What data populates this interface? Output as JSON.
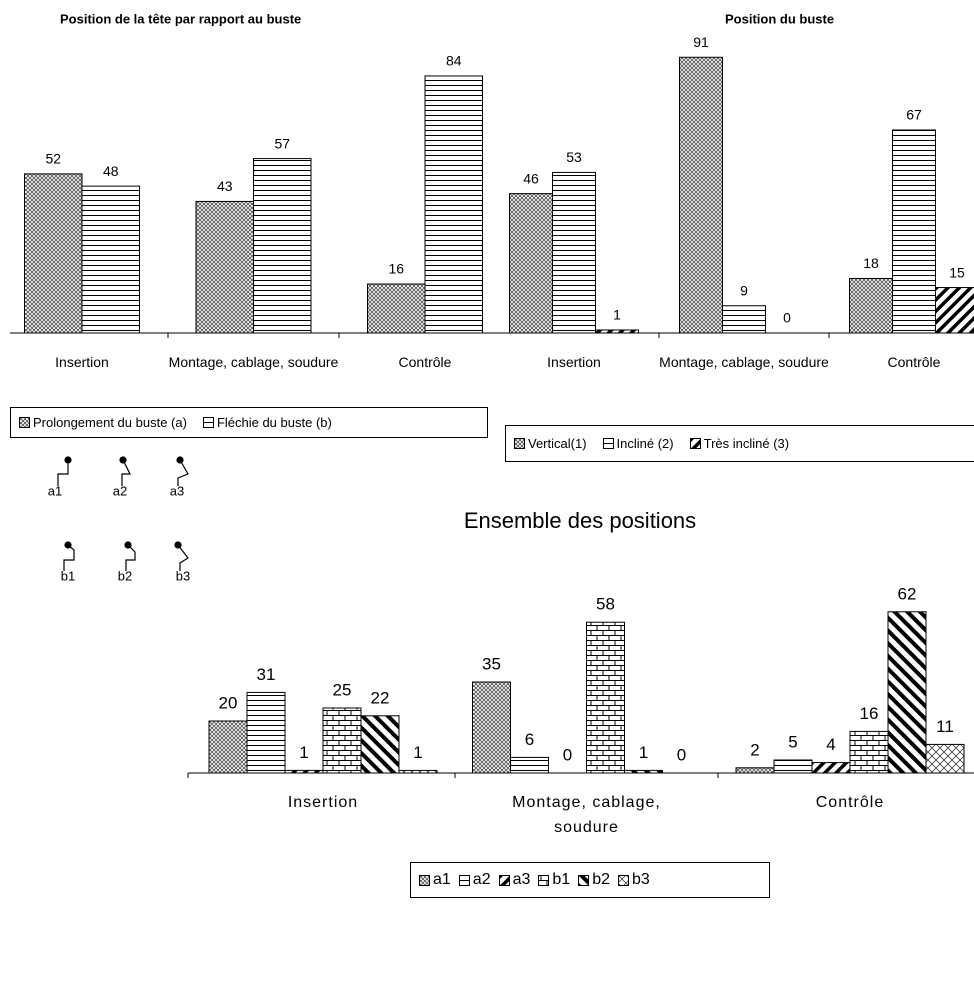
{
  "chart_data": [
    {
      "type": "bar",
      "title": "Position de la tête par rapport au buste",
      "categories": [
        "Insertion",
        "Montage, cablage, soudure",
        "Contrôle"
      ],
      "series": [
        {
          "name": "Prolongement du buste (a)",
          "pattern": "cross",
          "values": [
            52,
            43,
            16
          ]
        },
        {
          "name": "Fléchie du buste (b)",
          "pattern": "hline",
          "values": [
            48,
            57,
            84
          ]
        }
      ]
    },
    {
      "type": "bar",
      "title": "Position du buste",
      "categories": [
        "Insertion",
        "Montage, cablage, soudure",
        "Contrôle"
      ],
      "series": [
        {
          "name": "Vertical(1)",
          "pattern": "cross",
          "values": [
            46,
            91,
            18
          ]
        },
        {
          "name": "Incliné (2)",
          "pattern": "hline",
          "values": [
            53,
            9,
            67
          ]
        },
        {
          "name": "Très incliné (3)",
          "pattern": "slash",
          "values": [
            1,
            0,
            15
          ]
        }
      ]
    },
    {
      "type": "bar",
      "title": "Ensemble des positions",
      "categories": [
        "Insertion",
        "Montage, cablage, soudure",
        "Contrôle"
      ],
      "series": [
        {
          "name": "a1",
          "pattern": "cross",
          "values": [
            20,
            35,
            2
          ]
        },
        {
          "name": "a2",
          "pattern": "hline",
          "values": [
            31,
            6,
            5
          ]
        },
        {
          "name": "a3",
          "pattern": "slash",
          "values": [
            1,
            0,
            4
          ]
        },
        {
          "name": "b1",
          "pattern": "brick",
          "values": [
            25,
            58,
            16
          ]
        },
        {
          "name": "b2",
          "pattern": "backslash",
          "values": [
            22,
            1,
            62
          ]
        },
        {
          "name": "b3",
          "pattern": "diamond",
          "values": [
            1,
            0,
            11
          ]
        }
      ]
    }
  ]
}
